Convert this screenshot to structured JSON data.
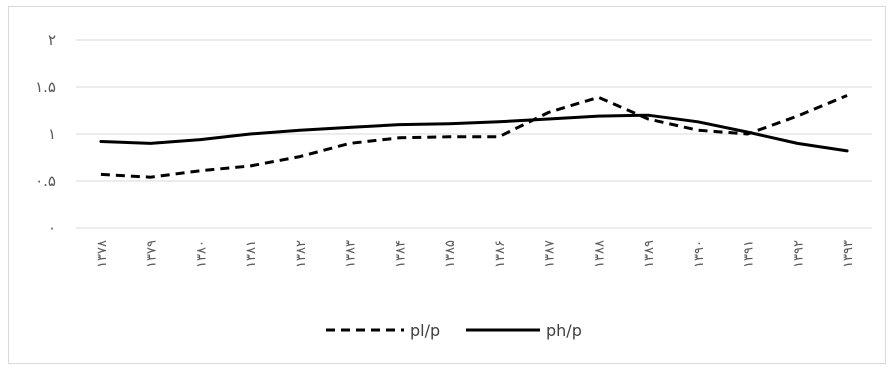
{
  "chart_data": {
    "type": "line",
    "categories": [
      "۱۳۷۸",
      "۱۳۷۹",
      "۱۳۸۰",
      "۱۳۸۱",
      "۱۳۸۲",
      "۱۳۸۳",
      "۱۳۸۴",
      "۱۳۸۵",
      "۱۳۸۶",
      "۱۳۸۷",
      "۱۳۸۸",
      "۱۳۸۹",
      "۱۳۹۰",
      "۱۳۹۱",
      "۱۳۹۲",
      "۱۳۹۳"
    ],
    "y_tick_labels": [
      "۰",
      "۰.۵",
      "۱",
      "۱.۵",
      "۲"
    ],
    "y_ticks": [
      0,
      0.5,
      1,
      1.5,
      2
    ],
    "ylim": [
      0,
      2
    ],
    "grid": true,
    "legend_position": "bottom",
    "series": [
      {
        "name": "pl/p",
        "style": "dashed",
        "color": "#000000",
        "values": [
          0.57,
          0.54,
          0.61,
          0.66,
          0.76,
          0.9,
          0.96,
          0.97,
          0.97,
          1.23,
          1.39,
          1.16,
          1.04,
          1.0,
          1.19,
          1.41
        ]
      },
      {
        "name": "ph/p",
        "style": "solid",
        "color": "#000000",
        "values": [
          0.92,
          0.9,
          0.94,
          1.0,
          1.04,
          1.07,
          1.1,
          1.11,
          1.13,
          1.16,
          1.19,
          1.2,
          1.13,
          1.02,
          0.9,
          0.82
        ]
      }
    ]
  }
}
